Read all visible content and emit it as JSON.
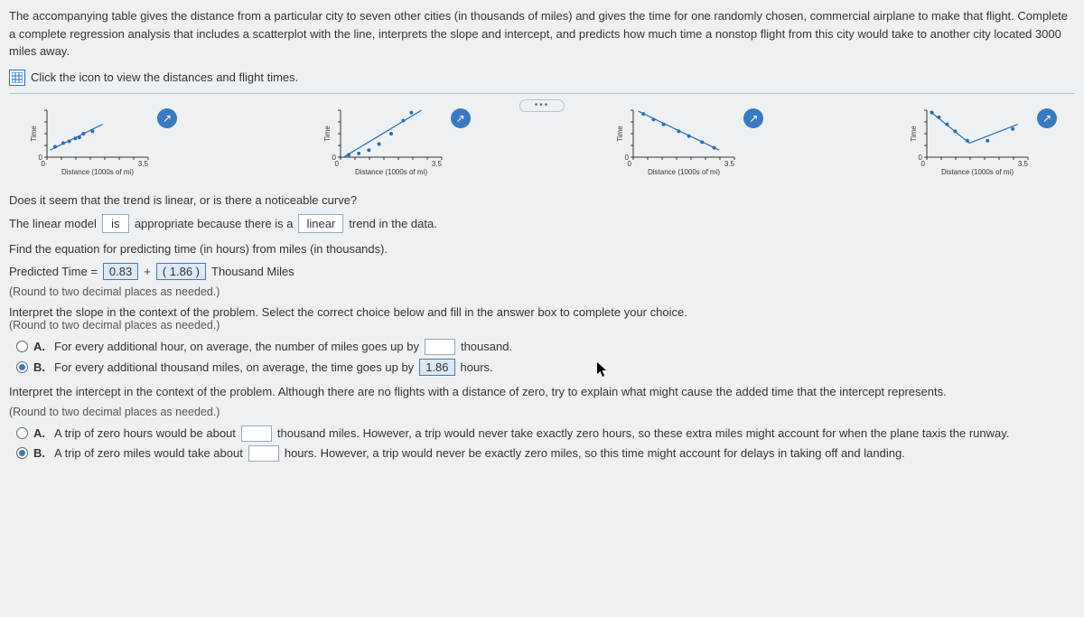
{
  "intro": "The accompanying table gives the distance from a particular city to seven other cities (in thousands of miles) and gives the time for one randomly chosen, commercial airplane to make that flight. Complete a complete regression analysis that includes a scatterplot with the line, interprets the slope and intercept, and predicts how much time a nonstop flight from this city would take to another city located 3000 miles away.",
  "link_text": "Click the icon to view the distances and flight times.",
  "charts": {
    "xlabel": "Distance (1000s of mi)",
    "ylabel": "Time",
    "xmax_label": "3.5",
    "zero": "0",
    "plots": [
      {
        "type": "linear_up",
        "pts": [
          [
            0.08,
            0.22
          ],
          [
            0.16,
            0.3
          ],
          [
            0.22,
            0.34
          ],
          [
            0.28,
            0.4
          ],
          [
            0.32,
            0.42
          ],
          [
            0.36,
            0.5
          ],
          [
            0.45,
            0.55
          ]
        ],
        "line": [
          [
            0.03,
            0.15
          ],
          [
            0.55,
            0.7
          ]
        ]
      },
      {
        "type": "curve",
        "pts": [
          [
            0.08,
            0.05
          ],
          [
            0.18,
            0.08
          ],
          [
            0.28,
            0.15
          ],
          [
            0.38,
            0.28
          ],
          [
            0.5,
            0.5
          ],
          [
            0.62,
            0.78
          ],
          [
            0.7,
            0.95
          ]
        ],
        "line": [
          [
            0.03,
            0.0
          ],
          [
            0.8,
            1.0
          ]
        ]
      },
      {
        "type": "linear_down",
        "pts": [
          [
            0.1,
            0.92
          ],
          [
            0.2,
            0.8
          ],
          [
            0.3,
            0.7
          ],
          [
            0.45,
            0.55
          ],
          [
            0.55,
            0.45
          ],
          [
            0.68,
            0.32
          ],
          [
            0.8,
            0.2
          ]
        ],
        "line": [
          [
            0.05,
            0.98
          ],
          [
            0.85,
            0.15
          ]
        ]
      },
      {
        "type": "piecewise",
        "pts": [
          [
            0.05,
            0.95
          ],
          [
            0.12,
            0.85
          ],
          [
            0.2,
            0.7
          ],
          [
            0.28,
            0.55
          ],
          [
            0.4,
            0.35
          ],
          [
            0.6,
            0.35
          ],
          [
            0.85,
            0.6
          ]
        ],
        "line": [
          [
            0.03,
            0.98
          ],
          [
            0.42,
            0.3
          ]
        ],
        "line2": [
          [
            0.42,
            0.3
          ],
          [
            0.9,
            0.7
          ]
        ]
      }
    ],
    "point_color": "#2a6db0",
    "line_color": "#2a6db0",
    "axis_color": "#333333"
  },
  "q1": "Does it seem that the trend is linear, or is there a noticeable curve?",
  "ans1_pre": "The linear model",
  "ans1_mid1": "is",
  "ans1_mid2": "appropriate because there is a",
  "ans1_mid3": "linear",
  "ans1_post": "trend in the data.",
  "q2": "Find the equation for predicting time (in hours) from miles (in thousands).",
  "eq_pre": "Predicted Time =",
  "eq_a": "0.83",
  "eq_plus": "+",
  "eq_b": "( 1.86 )",
  "eq_post": "Thousand Miles",
  "round_note": "(Round to two decimal places as needed.)",
  "q3": "Interpret the slope in the context of the problem. Select the correct choice below and fill in the answer box to complete your choice.",
  "optA1_pre": "For every additional hour, on average, the number of miles goes up by",
  "optA1_post": "thousand.",
  "optB1_pre": "For every additional thousand miles, on average, the time goes up by",
  "optB1_val": "1.86",
  "optB1_post": "hours.",
  "q4": "Interpret the intercept in the context of the problem. Although there are no flights with a distance of zero, try to explain what might cause the added time that the intercept represents.",
  "optA2_pre": "A trip of zero hours would be about",
  "optA2_post": "thousand miles. However, a trip would never take exactly zero hours, so these extra miles might account for when the plane taxis the runway.",
  "optB2_pre": "A trip of zero miles would take about",
  "optB2_post": "hours. However, a trip would never be exactly zero miles, so this time might account for delays in taking off and landing.",
  "labels": {
    "A": "A.",
    "B": "B."
  }
}
